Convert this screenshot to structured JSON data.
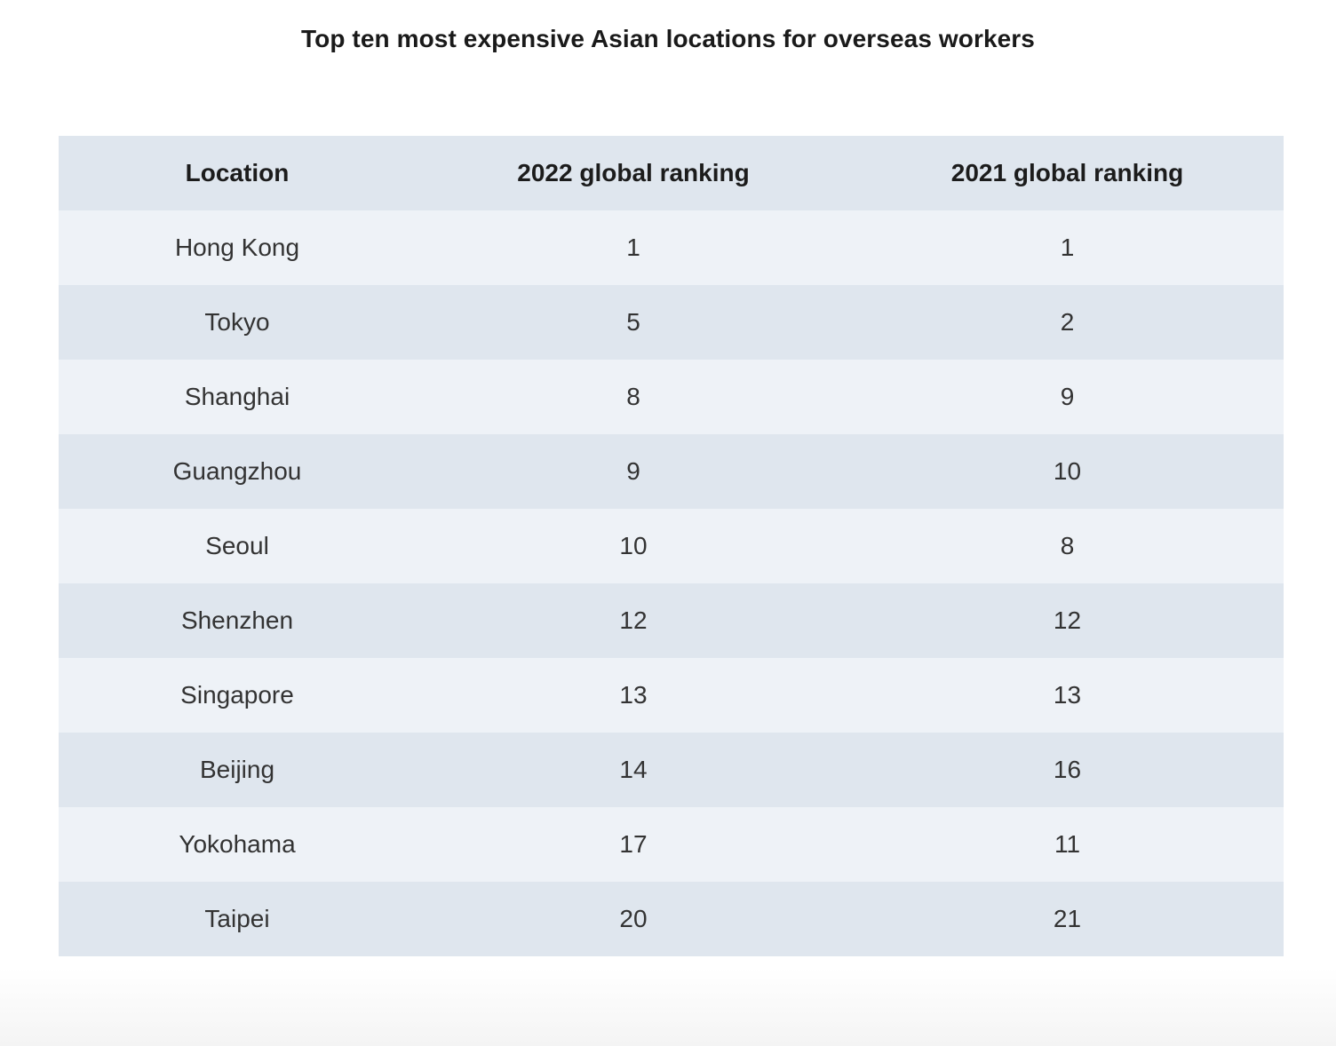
{
  "chart_data": {
    "type": "table",
    "title": "Top ten most expensive Asian locations for overseas workers",
    "columns": [
      "Location",
      "2022 global ranking",
      "2021 global ranking"
    ],
    "rows": [
      {
        "location": "Hong Kong",
        "rank_2022": "1",
        "rank_2021": "1"
      },
      {
        "location": "Tokyo",
        "rank_2022": "5",
        "rank_2021": "2"
      },
      {
        "location": "Shanghai",
        "rank_2022": "8",
        "rank_2021": "9"
      },
      {
        "location": "Guangzhou",
        "rank_2022": "9",
        "rank_2021": "10"
      },
      {
        "location": "Seoul",
        "rank_2022": "10",
        "rank_2021": "8"
      },
      {
        "location": "Shenzhen",
        "rank_2022": "12",
        "rank_2021": "12"
      },
      {
        "location": "Singapore",
        "rank_2022": "13",
        "rank_2021": "13"
      },
      {
        "location": "Beijing",
        "rank_2022": "14",
        "rank_2021": "16"
      },
      {
        "location": "Yokohama",
        "rank_2022": "17",
        "rank_2021": "11"
      },
      {
        "location": "Taipei",
        "rank_2022": "20",
        "rank_2021": "21"
      }
    ],
    "colors": {
      "header_bg": "#dfe6ee",
      "row_light": "#eef2f7",
      "row_dark": "#dfe6ee"
    }
  }
}
